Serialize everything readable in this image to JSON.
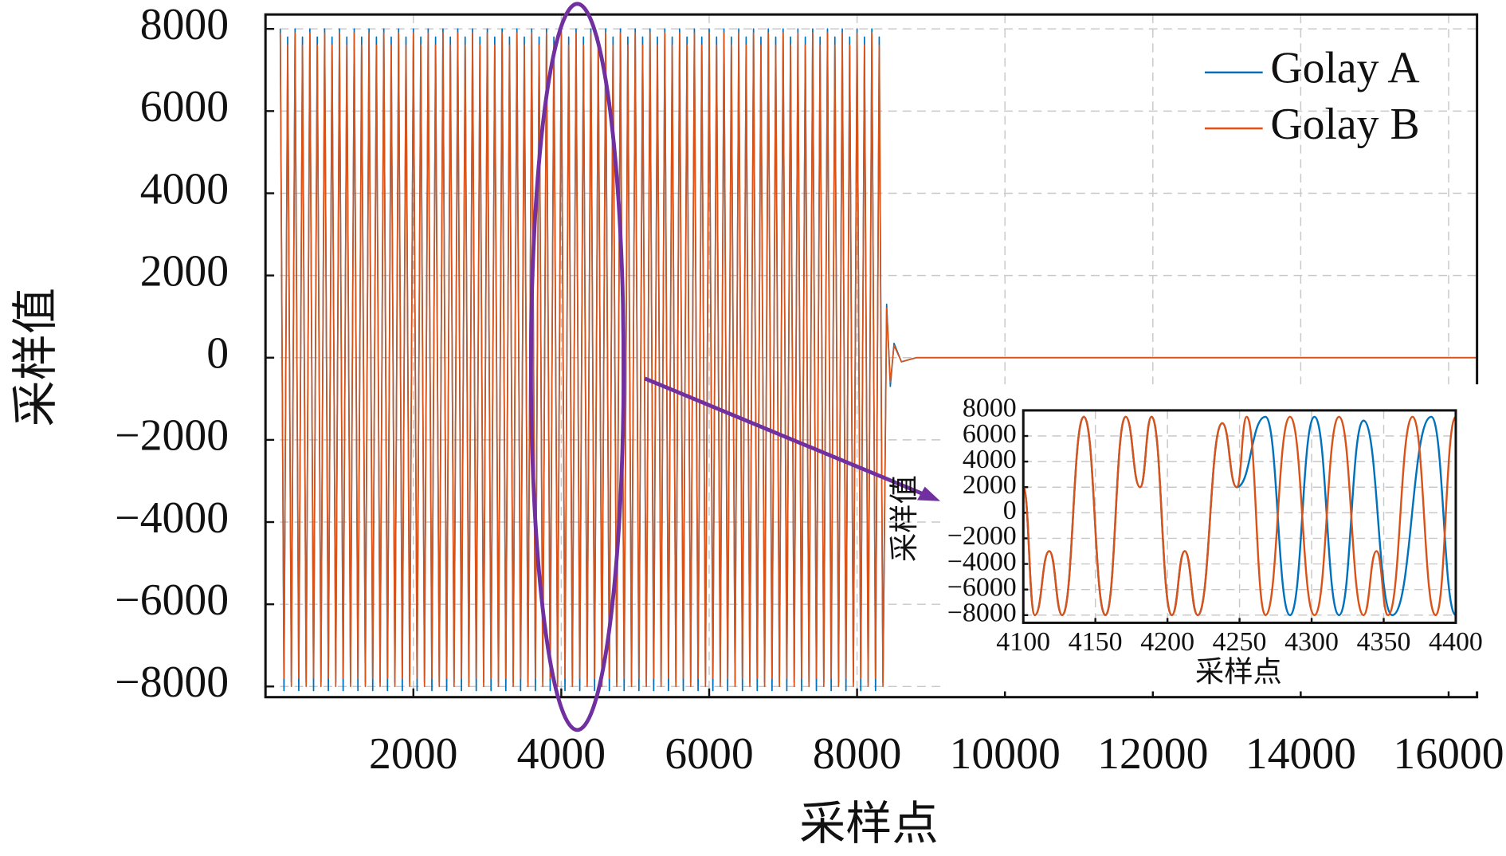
{
  "chart_data": [
    {
      "type": "line",
      "xlabel": "采样点",
      "ylabel": "采样值",
      "grid": true,
      "legend": "upper right",
      "xlim": [
        0,
        16384
      ],
      "ylim": [
        -8260,
        8350
      ],
      "xticks": [
        2000,
        4000,
        6000,
        8000,
        10000,
        12000,
        14000,
        16000
      ],
      "yticks": [
        {
          "value": -8000,
          "label": "−8000"
        },
        {
          "value": -6000,
          "label": "−6000"
        },
        {
          "value": -4000,
          "label": "−4000"
        },
        {
          "value": -2000,
          "label": "−2000"
        },
        0,
        2000,
        4000,
        6000,
        8000
      ],
      "x": [
        200,
        250,
        300,
        350,
        400,
        450,
        500,
        550,
        600,
        650,
        700,
        750,
        800,
        850,
        900,
        950,
        1000,
        1050,
        1100,
        1150,
        1200,
        1250,
        1300,
        1350,
        1400,
        1450,
        1500,
        1550,
        1600,
        1650,
        1700,
        1750,
        1800,
        1850,
        1900,
        1950,
        2000,
        2050,
        2100,
        2150,
        2200,
        2250,
        2300,
        2350,
        2400,
        2450,
        2500,
        2550,
        2600,
        2650,
        2700,
        2750,
        2800,
        2850,
        2900,
        2950,
        3000,
        3050,
        3100,
        3150,
        3200,
        3250,
        3300,
        3350,
        3400,
        3450,
        3500,
        3550,
        3600,
        3650,
        3700,
        3750,
        3800,
        3850,
        3900,
        3950,
        4000,
        4050,
        4100,
        4150,
        4200,
        4250,
        4300,
        4350,
        4400,
        4450,
        4500,
        4550,
        4600,
        4650,
        4700,
        4750,
        4800,
        4850,
        4900,
        4950,
        5000,
        5050,
        5100,
        5150,
        5200,
        5250,
        5300,
        5350,
        5400,
        5450,
        5500,
        5550,
        5600,
        5650,
        5700,
        5750,
        5800,
        5850,
        5900,
        5950,
        6000,
        6050,
        6100,
        6150,
        6200,
        6250,
        6300,
        6350,
        6400,
        6450,
        6500,
        6550,
        6600,
        6650,
        6700,
        6750,
        6800,
        6850,
        6900,
        6950,
        7000,
        7050,
        7100,
        7150,
        7200,
        7250,
        7300,
        7350,
        7400,
        7450,
        7500,
        7550,
        7600,
        7650,
        7700,
        7750,
        7800,
        7850,
        7900,
        7950,
        8000,
        8050,
        8100,
        8150,
        8200,
        8250,
        8300,
        8350,
        8400,
        8450,
        8500,
        8600,
        8800,
        16384
      ],
      "series": [
        {
          "name": "Golay A",
          "color": "#0072bd",
          "values": [
            8000,
            -8100,
            7800,
            -7900,
            8000,
            -8100,
            7800,
            -7900,
            8000,
            -8100,
            7800,
            -7900,
            8000,
            -8100,
            7800,
            -7900,
            8000,
            -8100,
            7800,
            -7900,
            8000,
            -8100,
            7800,
            -7900,
            8000,
            -8100,
            7800,
            -7900,
            8000,
            -8100,
            7800,
            -7900,
            8000,
            -8100,
            7800,
            -7900,
            8000,
            -8100,
            7800,
            -7900,
            8000,
            -8100,
            7800,
            -7900,
            8000,
            -8100,
            7800,
            -7900,
            8000,
            -8100,
            7800,
            -7900,
            8000,
            -8100,
            7800,
            -7900,
            8000,
            -8100,
            7800,
            -7900,
            8000,
            -8100,
            7800,
            -7900,
            8000,
            -8100,
            7800,
            -7900,
            8000,
            -8100,
            7800,
            -7900,
            8000,
            -8100,
            7800,
            -7900,
            8000,
            -8100,
            7800,
            -7900,
            8000,
            -8100,
            7800,
            -7900,
            8000,
            -8100,
            7800,
            -7900,
            8000,
            -8100,
            7800,
            -7900,
            8000,
            -8100,
            7800,
            -7900,
            8000,
            -8100,
            7800,
            -7900,
            8000,
            -8100,
            7800,
            -7900,
            8000,
            -8100,
            7800,
            -7900,
            8000,
            -8100,
            7800,
            -7900,
            8000,
            -8100,
            7800,
            -7900,
            8000,
            -8100,
            7800,
            -7900,
            8000,
            -8100,
            7800,
            -7900,
            8000,
            -8100,
            7800,
            -7900,
            8000,
            -8100,
            7800,
            -7900,
            8000,
            -8100,
            7800,
            -7900,
            8000,
            -8100,
            7800,
            -7900,
            8000,
            -8100,
            7800,
            -7900,
            8000,
            -8100,
            7800,
            -7900,
            8000,
            -8100,
            7800,
            -7900,
            8000,
            -8100,
            7800,
            -7900,
            8000,
            -8100,
            7800,
            -7900,
            8000,
            -8100,
            7800,
            -7900,
            1300,
            -700,
            350,
            -100,
            0,
            0
          ]
        },
        {
          "name": "Golay B",
          "color": "#d95319",
          "values": [
            7900,
            -7800,
            7600,
            -8000,
            7900,
            -7800,
            7600,
            -8000,
            7900,
            -7800,
            7600,
            -8000,
            7900,
            -7800,
            7600,
            -8000,
            7900,
            -7800,
            7600,
            -8000,
            7900,
            -7800,
            7600,
            -8000,
            7900,
            -7800,
            7600,
            -8000,
            7900,
            -7800,
            7600,
            -8000,
            7900,
            -7800,
            7600,
            -8000,
            7900,
            -7800,
            7600,
            -8000,
            7900,
            -7800,
            7600,
            -8000,
            7900,
            -7800,
            7600,
            -8000,
            7900,
            -7800,
            7600,
            -8000,
            7900,
            -7800,
            7600,
            -8000,
            7900,
            -7800,
            7600,
            -8000,
            7900,
            -7800,
            7600,
            -8000,
            7900,
            -7800,
            7600,
            -8000,
            7900,
            -7800,
            7600,
            -8000,
            7900,
            -7800,
            7600,
            -8000,
            7900,
            -7800,
            7600,
            -8000,
            7900,
            -7800,
            7600,
            -8000,
            7900,
            -7800,
            7600,
            -8000,
            7900,
            -7800,
            7600,
            -8000,
            7900,
            -7800,
            7600,
            -8000,
            7900,
            -7800,
            7600,
            -8000,
            7900,
            -7800,
            7600,
            -8000,
            7900,
            -7800,
            7600,
            -8000,
            7900,
            -7800,
            7600,
            -8000,
            7900,
            -7800,
            7600,
            -8000,
            7900,
            -7800,
            7600,
            -8000,
            7900,
            -7800,
            7600,
            -8000,
            7900,
            -7800,
            7600,
            -8000,
            7900,
            -7800,
            7600,
            -8000,
            7900,
            -7800,
            7600,
            -8000,
            7900,
            -7800,
            7600,
            -8000,
            7900,
            -7800,
            7600,
            -8000,
            7900,
            -7800,
            7600,
            -8000,
            7900,
            -7800,
            7600,
            -8000,
            7900,
            -7800,
            7600,
            -8000,
            7900,
            -7800,
            7600,
            -8000,
            7900,
            -7800,
            7600,
            -8000,
            1200,
            -600,
            300,
            -100,
            0,
            0
          ]
        }
      ]
    },
    {
      "type": "line",
      "xlabel": "采样点",
      "ylabel": "采样值",
      "grid": true,
      "xlim": [
        4100,
        4400
      ],
      "ylim": [
        -8600,
        8000
      ],
      "xticks": [
        4100,
        4150,
        4200,
        4250,
        4300,
        4350,
        4400
      ],
      "yticks": [
        {
          "value": -8000,
          "label": "−8000"
        },
        {
          "value": -6000,
          "label": "−6000"
        },
        {
          "value": -4000,
          "label": "−4000"
        },
        {
          "value": -2000,
          "label": "−2000"
        },
        0,
        2000,
        4000,
        6000,
        8000
      ],
      "series": [
        {
          "color": "#0072bd",
          "x": [
            4100,
            4108,
            4118,
            4127,
            4142,
            4157,
            4171,
            4181,
            4189,
            4203,
            4212,
            4221,
            4238,
            4248,
            4268,
            4285,
            4302,
            4319,
            4336,
            4356,
            4383,
            4400
          ],
          "values": [
            2000,
            -8000,
            -3000,
            -8000,
            7500,
            -8000,
            7500,
            2000,
            7500,
            -8000,
            -3000,
            -8000,
            7000,
            2000,
            7500,
            -8000,
            7500,
            -8000,
            7200,
            -8000,
            7500,
            -8000
          ]
        },
        {
          "color": "#d95319",
          "x": [
            4100,
            4108,
            4118,
            4127,
            4142,
            4157,
            4171,
            4181,
            4189,
            4203,
            4212,
            4221,
            4238,
            4248,
            4255,
            4268,
            4285,
            4302,
            4319,
            4336,
            4345,
            4353,
            4370,
            4386,
            4400
          ],
          "values": [
            2000,
            -8000,
            -3000,
            -8000,
            7500,
            -8000,
            7500,
            2000,
            7500,
            -8000,
            -3000,
            -8000,
            7000,
            2000,
            7500,
            -8000,
            7500,
            -8000,
            7500,
            -8000,
            -3000,
            -8000,
            7500,
            -8000,
            7500
          ]
        }
      ]
    }
  ]
}
